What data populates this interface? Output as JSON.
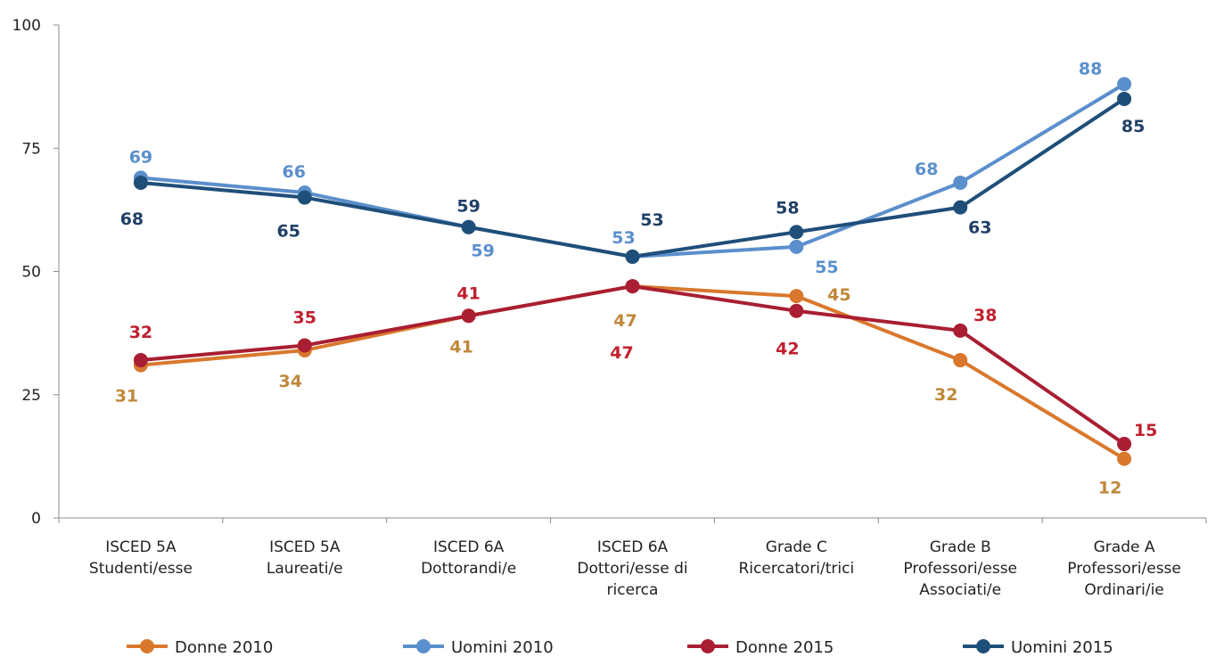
{
  "chart_data": {
    "type": "line",
    "categories": [
      [
        "ISCED 5A",
        "Studenti/esse"
      ],
      [
        "ISCED 5A",
        "Laureati/e"
      ],
      [
        "ISCED 6A",
        "Dottorandi/e"
      ],
      [
        "ISCED 6A",
        "Dottori/esse di",
        "ricerca"
      ],
      [
        "Grade C",
        "Ricercatori/trici"
      ],
      [
        "Grade B",
        "Professori/esse",
        "Associati/e"
      ],
      [
        "Grade A",
        "Professori/esse",
        "Ordinari/ie"
      ]
    ],
    "ylim": [
      0,
      100
    ],
    "yticks": [
      "0",
      "25",
      "50",
      "75",
      "100"
    ],
    "grid": false,
    "legend_position": "bottom",
    "series": [
      {
        "name": "Donne 2010",
        "color": "#D9782D",
        "labelColor": "#C0883A",
        "values": [
          31,
          34,
          41,
          47,
          45,
          32,
          12
        ],
        "labels": [
          "31",
          "34",
          "41",
          "47",
          "45",
          "32",
          "12"
        ]
      },
      {
        "name": "Uomini 2010",
        "color": "#5B8FCC",
        "labelColor": "#5B8FCC",
        "values": [
          69,
          66,
          59,
          53,
          55,
          68,
          88
        ],
        "labels": [
          "69",
          "66",
          "59",
          "53",
          "55",
          "68",
          "88"
        ]
      },
      {
        "name": "Donne 2015",
        "color": "#A91E32",
        "labelColor": "#C0202F",
        "values": [
          32,
          35,
          41,
          47,
          42,
          38,
          15
        ],
        "labels": [
          "32",
          "35",
          "41",
          "47",
          "42",
          "38",
          "15"
        ]
      },
      {
        "name": "Uomini 2015",
        "color": "#1F4E79",
        "labelColor": "#1F3F66",
        "values": [
          68,
          65,
          59,
          53,
          58,
          63,
          85
        ],
        "labels": [
          "68",
          "65",
          "59",
          "53",
          "58",
          "63",
          "85"
        ]
      }
    ]
  }
}
